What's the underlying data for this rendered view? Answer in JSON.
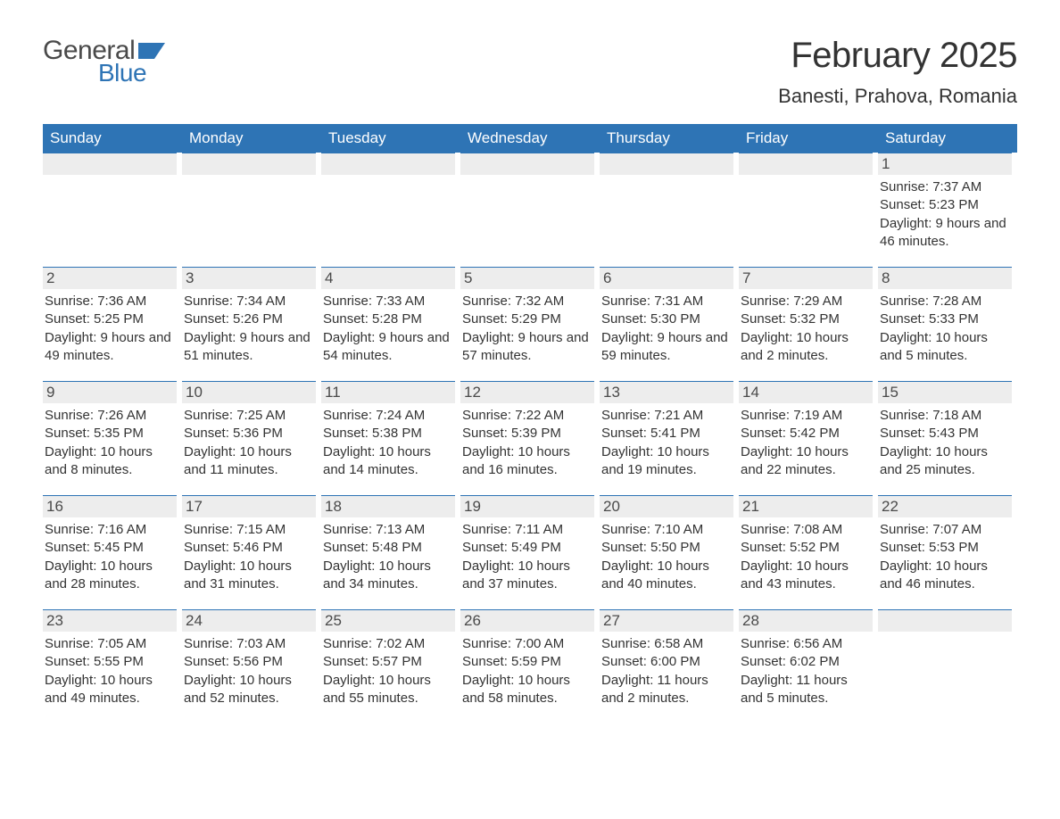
{
  "logo": {
    "text_general": "General",
    "text_blue": "Blue",
    "shape_color": "#2e74b5",
    "text_general_color": "#4a4a4a",
    "text_blue_color": "#2e74b5"
  },
  "title": {
    "month_year": "February 2025",
    "location": "Banesti, Prahova, Romania",
    "title_color": "#333333",
    "title_fontsize": 40,
    "location_fontsize": 22
  },
  "calendar": {
    "header_bg": "#2e74b5",
    "header_text_color": "#ffffff",
    "day_bar_bg": "#ededed",
    "day_bar_border": "#2e74b5",
    "text_color": "#333333",
    "columns": [
      "Sunday",
      "Monday",
      "Tuesday",
      "Wednesday",
      "Thursday",
      "Friday",
      "Saturday"
    ],
    "weeks": [
      [
        {
          "day": "",
          "sunrise": "",
          "sunset": "",
          "daylight": ""
        },
        {
          "day": "",
          "sunrise": "",
          "sunset": "",
          "daylight": ""
        },
        {
          "day": "",
          "sunrise": "",
          "sunset": "",
          "daylight": ""
        },
        {
          "day": "",
          "sunrise": "",
          "sunset": "",
          "daylight": ""
        },
        {
          "day": "",
          "sunrise": "",
          "sunset": "",
          "daylight": ""
        },
        {
          "day": "",
          "sunrise": "",
          "sunset": "",
          "daylight": ""
        },
        {
          "day": "1",
          "sunrise": "Sunrise: 7:37 AM",
          "sunset": "Sunset: 5:23 PM",
          "daylight": "Daylight: 9 hours and 46 minutes."
        }
      ],
      [
        {
          "day": "2",
          "sunrise": "Sunrise: 7:36 AM",
          "sunset": "Sunset: 5:25 PM",
          "daylight": "Daylight: 9 hours and 49 minutes."
        },
        {
          "day": "3",
          "sunrise": "Sunrise: 7:34 AM",
          "sunset": "Sunset: 5:26 PM",
          "daylight": "Daylight: 9 hours and 51 minutes."
        },
        {
          "day": "4",
          "sunrise": "Sunrise: 7:33 AM",
          "sunset": "Sunset: 5:28 PM",
          "daylight": "Daylight: 9 hours and 54 minutes."
        },
        {
          "day": "5",
          "sunrise": "Sunrise: 7:32 AM",
          "sunset": "Sunset: 5:29 PM",
          "daylight": "Daylight: 9 hours and 57 minutes."
        },
        {
          "day": "6",
          "sunrise": "Sunrise: 7:31 AM",
          "sunset": "Sunset: 5:30 PM",
          "daylight": "Daylight: 9 hours and 59 minutes."
        },
        {
          "day": "7",
          "sunrise": "Sunrise: 7:29 AM",
          "sunset": "Sunset: 5:32 PM",
          "daylight": "Daylight: 10 hours and 2 minutes."
        },
        {
          "day": "8",
          "sunrise": "Sunrise: 7:28 AM",
          "sunset": "Sunset: 5:33 PM",
          "daylight": "Daylight: 10 hours and 5 minutes."
        }
      ],
      [
        {
          "day": "9",
          "sunrise": "Sunrise: 7:26 AM",
          "sunset": "Sunset: 5:35 PM",
          "daylight": "Daylight: 10 hours and 8 minutes."
        },
        {
          "day": "10",
          "sunrise": "Sunrise: 7:25 AM",
          "sunset": "Sunset: 5:36 PM",
          "daylight": "Daylight: 10 hours and 11 minutes."
        },
        {
          "day": "11",
          "sunrise": "Sunrise: 7:24 AM",
          "sunset": "Sunset: 5:38 PM",
          "daylight": "Daylight: 10 hours and 14 minutes."
        },
        {
          "day": "12",
          "sunrise": "Sunrise: 7:22 AM",
          "sunset": "Sunset: 5:39 PM",
          "daylight": "Daylight: 10 hours and 16 minutes."
        },
        {
          "day": "13",
          "sunrise": "Sunrise: 7:21 AM",
          "sunset": "Sunset: 5:41 PM",
          "daylight": "Daylight: 10 hours and 19 minutes."
        },
        {
          "day": "14",
          "sunrise": "Sunrise: 7:19 AM",
          "sunset": "Sunset: 5:42 PM",
          "daylight": "Daylight: 10 hours and 22 minutes."
        },
        {
          "day": "15",
          "sunrise": "Sunrise: 7:18 AM",
          "sunset": "Sunset: 5:43 PM",
          "daylight": "Daylight: 10 hours and 25 minutes."
        }
      ],
      [
        {
          "day": "16",
          "sunrise": "Sunrise: 7:16 AM",
          "sunset": "Sunset: 5:45 PM",
          "daylight": "Daylight: 10 hours and 28 minutes."
        },
        {
          "day": "17",
          "sunrise": "Sunrise: 7:15 AM",
          "sunset": "Sunset: 5:46 PM",
          "daylight": "Daylight: 10 hours and 31 minutes."
        },
        {
          "day": "18",
          "sunrise": "Sunrise: 7:13 AM",
          "sunset": "Sunset: 5:48 PM",
          "daylight": "Daylight: 10 hours and 34 minutes."
        },
        {
          "day": "19",
          "sunrise": "Sunrise: 7:11 AM",
          "sunset": "Sunset: 5:49 PM",
          "daylight": "Daylight: 10 hours and 37 minutes."
        },
        {
          "day": "20",
          "sunrise": "Sunrise: 7:10 AM",
          "sunset": "Sunset: 5:50 PM",
          "daylight": "Daylight: 10 hours and 40 minutes."
        },
        {
          "day": "21",
          "sunrise": "Sunrise: 7:08 AM",
          "sunset": "Sunset: 5:52 PM",
          "daylight": "Daylight: 10 hours and 43 minutes."
        },
        {
          "day": "22",
          "sunrise": "Sunrise: 7:07 AM",
          "sunset": "Sunset: 5:53 PM",
          "daylight": "Daylight: 10 hours and 46 minutes."
        }
      ],
      [
        {
          "day": "23",
          "sunrise": "Sunrise: 7:05 AM",
          "sunset": "Sunset: 5:55 PM",
          "daylight": "Daylight: 10 hours and 49 minutes."
        },
        {
          "day": "24",
          "sunrise": "Sunrise: 7:03 AM",
          "sunset": "Sunset: 5:56 PM",
          "daylight": "Daylight: 10 hours and 52 minutes."
        },
        {
          "day": "25",
          "sunrise": "Sunrise: 7:02 AM",
          "sunset": "Sunset: 5:57 PM",
          "daylight": "Daylight: 10 hours and 55 minutes."
        },
        {
          "day": "26",
          "sunrise": "Sunrise: 7:00 AM",
          "sunset": "Sunset: 5:59 PM",
          "daylight": "Daylight: 10 hours and 58 minutes."
        },
        {
          "day": "27",
          "sunrise": "Sunrise: 6:58 AM",
          "sunset": "Sunset: 6:00 PM",
          "daylight": "Daylight: 11 hours and 2 minutes."
        },
        {
          "day": "28",
          "sunrise": "Sunrise: 6:56 AM",
          "sunset": "Sunset: 6:02 PM",
          "daylight": "Daylight: 11 hours and 5 minutes."
        },
        {
          "day": "",
          "sunrise": "",
          "sunset": "",
          "daylight": ""
        }
      ]
    ]
  }
}
